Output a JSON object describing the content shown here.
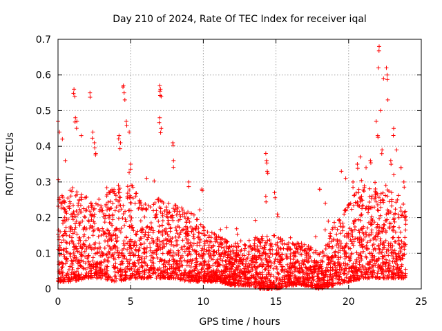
{
  "chart_data": {
    "type": "scatter",
    "title": "Day 210 of 2024, Rate Of TEC Index for receiver iqal",
    "xlabel": "GPS time / hours",
    "ylabel": "ROTI / TECUs",
    "xlim": [
      0,
      25
    ],
    "ylim": [
      0,
      0.7
    ],
    "x_ticks": [
      0,
      5,
      10,
      15,
      20,
      25
    ],
    "x_tick_labels": [
      "0",
      "5",
      "10",
      "15",
      "20",
      "25"
    ],
    "y_ticks": [
      0,
      0.1,
      0.2,
      0.3,
      0.4,
      0.5,
      0.6,
      0.7
    ],
    "y_tick_labels": [
      "0",
      "0.1",
      "0.2",
      "0.3",
      "0.4",
      "0.5",
      "0.6",
      "0.7"
    ],
    "grid": true,
    "marker": "+",
    "series": [
      {
        "name": "ROTI",
        "color": "#ff0000",
        "time_range_hours": [
          0,
          23.95
        ],
        "envelope": {
          "hours": [
            0,
            1,
            2,
            3,
            4,
            5,
            6,
            7,
            8,
            9,
            10,
            11,
            12,
            13,
            14,
            15,
            16,
            17,
            18,
            19,
            20,
            21,
            22,
            23,
            24
          ],
          "typical_max": [
            0.26,
            0.28,
            0.26,
            0.25,
            0.3,
            0.3,
            0.24,
            0.26,
            0.24,
            0.22,
            0.18,
            0.15,
            0.13,
            0.14,
            0.15,
            0.15,
            0.13,
            0.13,
            0.1,
            0.18,
            0.24,
            0.3,
            0.28,
            0.28,
            0.24
          ],
          "typical_min": [
            0.02,
            0.02,
            0.03,
            0.03,
            0.02,
            0.03,
            0.03,
            0.03,
            0.03,
            0.02,
            0.02,
            0.02,
            0.01,
            0.01,
            0.0,
            0.0,
            0.01,
            0.01,
            0.0,
            0.01,
            0.02,
            0.03,
            0.03,
            0.03,
            0.03
          ]
        },
        "outliers": [
          [
            0.0,
            0.47
          ],
          [
            0.1,
            0.44
          ],
          [
            0.3,
            0.42
          ],
          [
            0.5,
            0.36
          ],
          [
            1.1,
            0.56
          ],
          [
            1.15,
            0.54
          ],
          [
            1.2,
            0.48
          ],
          [
            1.3,
            0.47
          ],
          [
            1.6,
            0.43
          ],
          [
            2.2,
            0.55
          ],
          [
            2.4,
            0.44
          ],
          [
            2.5,
            0.41
          ],
          [
            2.6,
            0.38
          ],
          [
            4.2,
            0.43
          ],
          [
            4.3,
            0.41
          ],
          [
            4.5,
            0.57
          ],
          [
            4.55,
            0.55
          ],
          [
            4.6,
            0.53
          ],
          [
            4.7,
            0.47
          ],
          [
            4.9,
            0.44
          ],
          [
            5.0,
            0.35
          ],
          [
            6.1,
            0.31
          ],
          [
            7.0,
            0.57
          ],
          [
            7.05,
            0.56
          ],
          [
            7.1,
            0.54
          ],
          [
            7.0,
            0.48
          ],
          [
            7.1,
            0.45
          ],
          [
            7.9,
            0.41
          ],
          [
            7.95,
            0.36
          ],
          [
            9.0,
            0.3
          ],
          [
            9.9,
            0.28
          ],
          [
            14.3,
            0.38
          ],
          [
            14.35,
            0.36
          ],
          [
            14.4,
            0.33
          ],
          [
            14.3,
            0.26
          ],
          [
            14.9,
            0.27
          ],
          [
            15.1,
            0.21
          ],
          [
            18.0,
            0.28
          ],
          [
            18.4,
            0.24
          ],
          [
            18.6,
            0.19
          ],
          [
            19.5,
            0.33
          ],
          [
            19.8,
            0.31
          ],
          [
            20.3,
            0.3
          ],
          [
            20.6,
            0.35
          ],
          [
            20.8,
            0.37
          ],
          [
            21.2,
            0.34
          ],
          [
            21.5,
            0.36
          ],
          [
            21.9,
            0.47
          ],
          [
            22.0,
            0.43
          ],
          [
            22.05,
            0.62
          ],
          [
            22.1,
            0.68
          ],
          [
            22.2,
            0.5
          ],
          [
            22.3,
            0.39
          ],
          [
            22.4,
            0.59
          ],
          [
            22.6,
            0.62
          ],
          [
            22.65,
            0.6
          ],
          [
            22.7,
            0.53
          ],
          [
            22.9,
            0.36
          ],
          [
            23.1,
            0.45
          ],
          [
            23.3,
            0.39
          ],
          [
            23.6,
            0.34
          ],
          [
            23.8,
            0.3
          ]
        ]
      }
    ]
  }
}
